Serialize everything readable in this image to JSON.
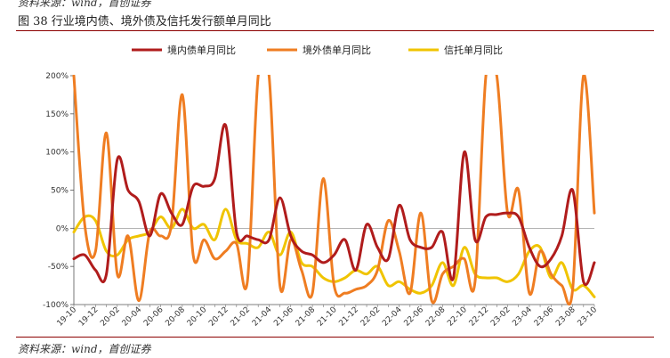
{
  "header": {
    "top_cut_text": "资料来源：wind，首创证券",
    "figure_title": "图 38 行业境内债、境外债及信托发行额单月同比"
  },
  "footer": {
    "source": "资料来源：wind，首创证券"
  },
  "chart_data": {
    "type": "line",
    "title": "",
    "xlabel": "",
    "ylabel": "",
    "ylim": [
      -100,
      200
    ],
    "yticks": [
      -100,
      -50,
      0,
      50,
      100,
      150,
      200
    ],
    "ytick_labels": [
      "-100%",
      "-50%",
      "0%",
      "50%",
      "100%",
      "150%",
      "200%"
    ],
    "x": [
      "19-10",
      "19-11",
      "19-12",
      "20-01",
      "20-02",
      "20-03",
      "20-04",
      "20-05",
      "20-06",
      "20-07",
      "20-08",
      "20-09",
      "20-10",
      "20-11",
      "20-12",
      "21-01",
      "21-02",
      "21-03",
      "21-04",
      "21-05",
      "21-06",
      "21-07",
      "21-08",
      "21-09",
      "21-10",
      "21-11",
      "21-12",
      "22-01",
      "22-02",
      "22-03",
      "22-04",
      "22-05",
      "22-06",
      "22-07",
      "22-08",
      "22-09",
      "22-10",
      "22-11",
      "22-12",
      "23-01",
      "23-02",
      "23-03",
      "23-04",
      "23-05",
      "23-06",
      "23-07",
      "23-08",
      "23-09",
      "23-10"
    ],
    "x_tick_labels": [
      "19-10",
      "19-12",
      "20-02",
      "20-04",
      "20-06",
      "20-08",
      "20-10",
      "20-12",
      "21-02",
      "21-04",
      "21-06",
      "21-08",
      "21-10",
      "21-12",
      "22-02",
      "22-04",
      "22-06",
      "22-08",
      "22-10",
      "22-12",
      "23-02",
      "23-04",
      "23-06",
      "23-08",
      "23-10"
    ],
    "grid": false,
    "legend_position": "top",
    "series": [
      {
        "name": "境内债单月同比",
        "color": "#b01c1c",
        "values": [
          -40,
          -35,
          -55,
          -60,
          90,
          50,
          35,
          -10,
          45,
          20,
          5,
          55,
          55,
          65,
          135,
          -5,
          -10,
          -15,
          -15,
          40,
          -10,
          -30,
          -35,
          -45,
          -35,
          -15,
          -55,
          5,
          -25,
          -40,
          30,
          -15,
          -25,
          -25,
          -5,
          -65,
          100,
          -15,
          15,
          18,
          20,
          15,
          -25,
          -50,
          -40,
          -10,
          50,
          -70,
          -45
        ]
      },
      {
        "name": "境外债单月同比",
        "color": "#ef7d22",
        "values": [
          200,
          5,
          -30,
          125,
          -60,
          -10,
          -95,
          -5,
          -10,
          5,
          175,
          -35,
          -15,
          -40,
          -30,
          -20,
          -70,
          200,
          200,
          -75,
          -15,
          -55,
          -85,
          65,
          -75,
          -85,
          -80,
          -75,
          -55,
          10,
          -30,
          -85,
          20,
          -95,
          -60,
          -50,
          -40,
          -70,
          200,
          200,
          20,
          50,
          -85,
          -30,
          -60,
          -75,
          -80,
          200,
          20
        ]
      },
      {
        "name": "信托单月同比",
        "color": "#f0c400",
        "values": [
          -5,
          15,
          10,
          -30,
          -35,
          -15,
          -10,
          -5,
          15,
          0,
          25,
          0,
          5,
          -15,
          25,
          -15,
          -20,
          -25,
          -5,
          -35,
          -5,
          -45,
          -50,
          -65,
          -70,
          -65,
          -55,
          -60,
          -50,
          -75,
          -70,
          -80,
          -85,
          -75,
          -45,
          -75,
          -25,
          -60,
          -65,
          -65,
          -70,
          -60,
          -30,
          -25,
          -65,
          -45,
          -80,
          -75,
          -90
        ]
      }
    ]
  }
}
